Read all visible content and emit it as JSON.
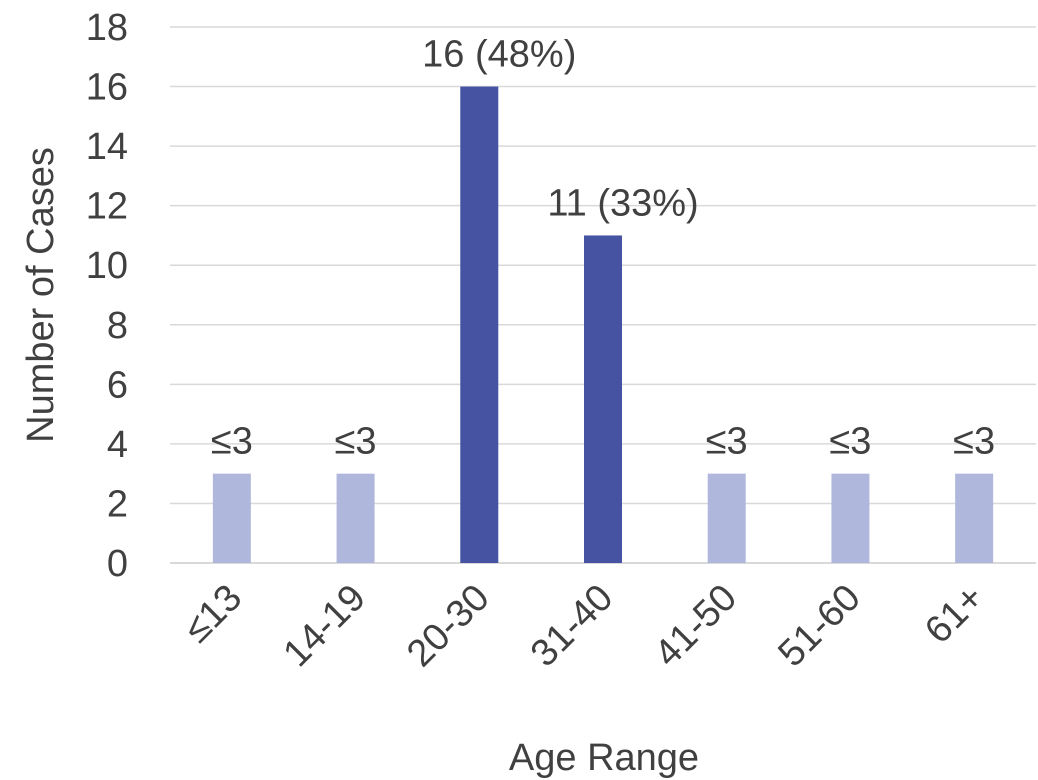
{
  "chart_data": {
    "type": "bar",
    "title": "",
    "xlabel": "Age Range",
    "ylabel": "Number of Cases",
    "ylim": [
      0,
      18
    ],
    "yticks": [
      0,
      2,
      4,
      6,
      8,
      10,
      12,
      14,
      16,
      18
    ],
    "grid": true,
    "legend": "none",
    "categories": [
      "≤13",
      "14-19",
      "20-30",
      "31-40",
      "41-50",
      "51-60",
      "61+"
    ],
    "values": [
      3,
      3,
      16,
      11,
      3,
      3,
      3
    ],
    "data_labels": [
      "≤3",
      "≤3",
      "16 (48%)",
      "11 (33%)",
      "≤3",
      "≤3",
      "≤3"
    ],
    "colors": {
      "highlight": "#4653a2",
      "muted": "#b0b7dc"
    },
    "bar_emphasis": [
      "muted",
      "muted",
      "highlight",
      "highlight",
      "muted",
      "muted",
      "muted"
    ]
  }
}
